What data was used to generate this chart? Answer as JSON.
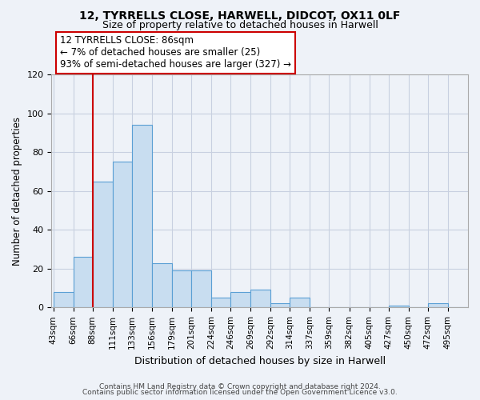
{
  "title": "12, TYRRELLS CLOSE, HARWELL, DIDCOT, OX11 0LF",
  "subtitle": "Size of property relative to detached houses in Harwell",
  "xlabel": "Distribution of detached houses by size in Harwell",
  "ylabel": "Number of detached properties",
  "bar_color": "#c8ddf0",
  "bar_edge_color": "#5a9fd4",
  "bins": [
    43,
    66,
    88,
    111,
    133,
    156,
    179,
    201,
    224,
    246,
    269,
    292,
    314,
    337,
    359,
    382,
    405,
    427,
    450,
    472,
    495
  ],
  "counts": [
    8,
    26,
    65,
    75,
    94,
    23,
    19,
    19,
    5,
    8,
    9,
    2,
    5,
    0,
    0,
    0,
    0,
    1,
    0,
    2,
    0
  ],
  "tick_labels": [
    "43sqm",
    "66sqm",
    "88sqm",
    "111sqm",
    "133sqm",
    "156sqm",
    "179sqm",
    "201sqm",
    "224sqm",
    "246sqm",
    "269sqm",
    "292sqm",
    "314sqm",
    "337sqm",
    "359sqm",
    "382sqm",
    "405sqm",
    "427sqm",
    "450sqm",
    "472sqm",
    "495sqm"
  ],
  "vline_x": 88,
  "vline_color": "#cc0000",
  "annotation_line1": "12 TYRRELLS CLOSE: 86sqm",
  "annotation_line2": "← 7% of detached houses are smaller (25)",
  "annotation_line3": "93% of semi-detached houses are larger (327) →",
  "annotation_box_edge": "#cc0000",
  "ylim": [
    0,
    120
  ],
  "yticks": [
    0,
    20,
    40,
    60,
    80,
    100,
    120
  ],
  "footer1": "Contains HM Land Registry data © Crown copyright and database right 2024.",
  "footer2": "Contains public sector information licensed under the Open Government Licence v3.0.",
  "background_color": "#eef2f8",
  "plot_bg_color": "#eef2f8",
  "grid_color": "#c8d0e0"
}
